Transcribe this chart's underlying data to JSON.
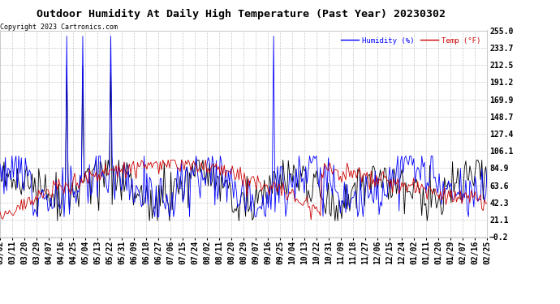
{
  "title": "Outdoor Humidity At Daily High Temperature (Past Year) 20230302",
  "copyright": "Copyright 2023 Cartronics.com",
  "legend_humidity": "Humidity (%)",
  "legend_temp": "Temp (°F)",
  "yticks": [
    -0.2,
    21.1,
    42.3,
    63.6,
    84.9,
    106.1,
    127.4,
    148.7,
    169.9,
    191.2,
    212.5,
    233.7,
    255.0
  ],
  "ymin": -0.2,
  "ymax": 255.0,
  "background_color": "#ffffff",
  "grid_color": "#bbbbbb",
  "title_fontsize": 9.5,
  "tick_fontsize": 7,
  "copyright_fontsize": 6,
  "xtick_labels": [
    "03/02",
    "03/11",
    "03/20",
    "03/29",
    "04/07",
    "04/16",
    "04/25",
    "05/04",
    "05/13",
    "05/22",
    "05/31",
    "06/09",
    "06/18",
    "06/27",
    "07/06",
    "07/15",
    "07/24",
    "08/02",
    "08/11",
    "08/20",
    "08/29",
    "09/07",
    "09/16",
    "09/25",
    "10/04",
    "10/13",
    "10/22",
    "10/31",
    "11/09",
    "11/18",
    "11/27",
    "12/06",
    "12/15",
    "12/24",
    "01/02",
    "01/11",
    "01/20",
    "01/29",
    "02/07",
    "02/16",
    "02/25"
  ],
  "num_days": 366,
  "humidity_color": "#0000ff",
  "temp_color": "#cc0000",
  "black_color": "#000000",
  "line_width": 0.6,
  "spike_days_humidity": [
    50,
    62,
    83,
    205
  ],
  "spike_days_black": [
    50,
    62,
    83
  ],
  "spike_value": 248.0
}
